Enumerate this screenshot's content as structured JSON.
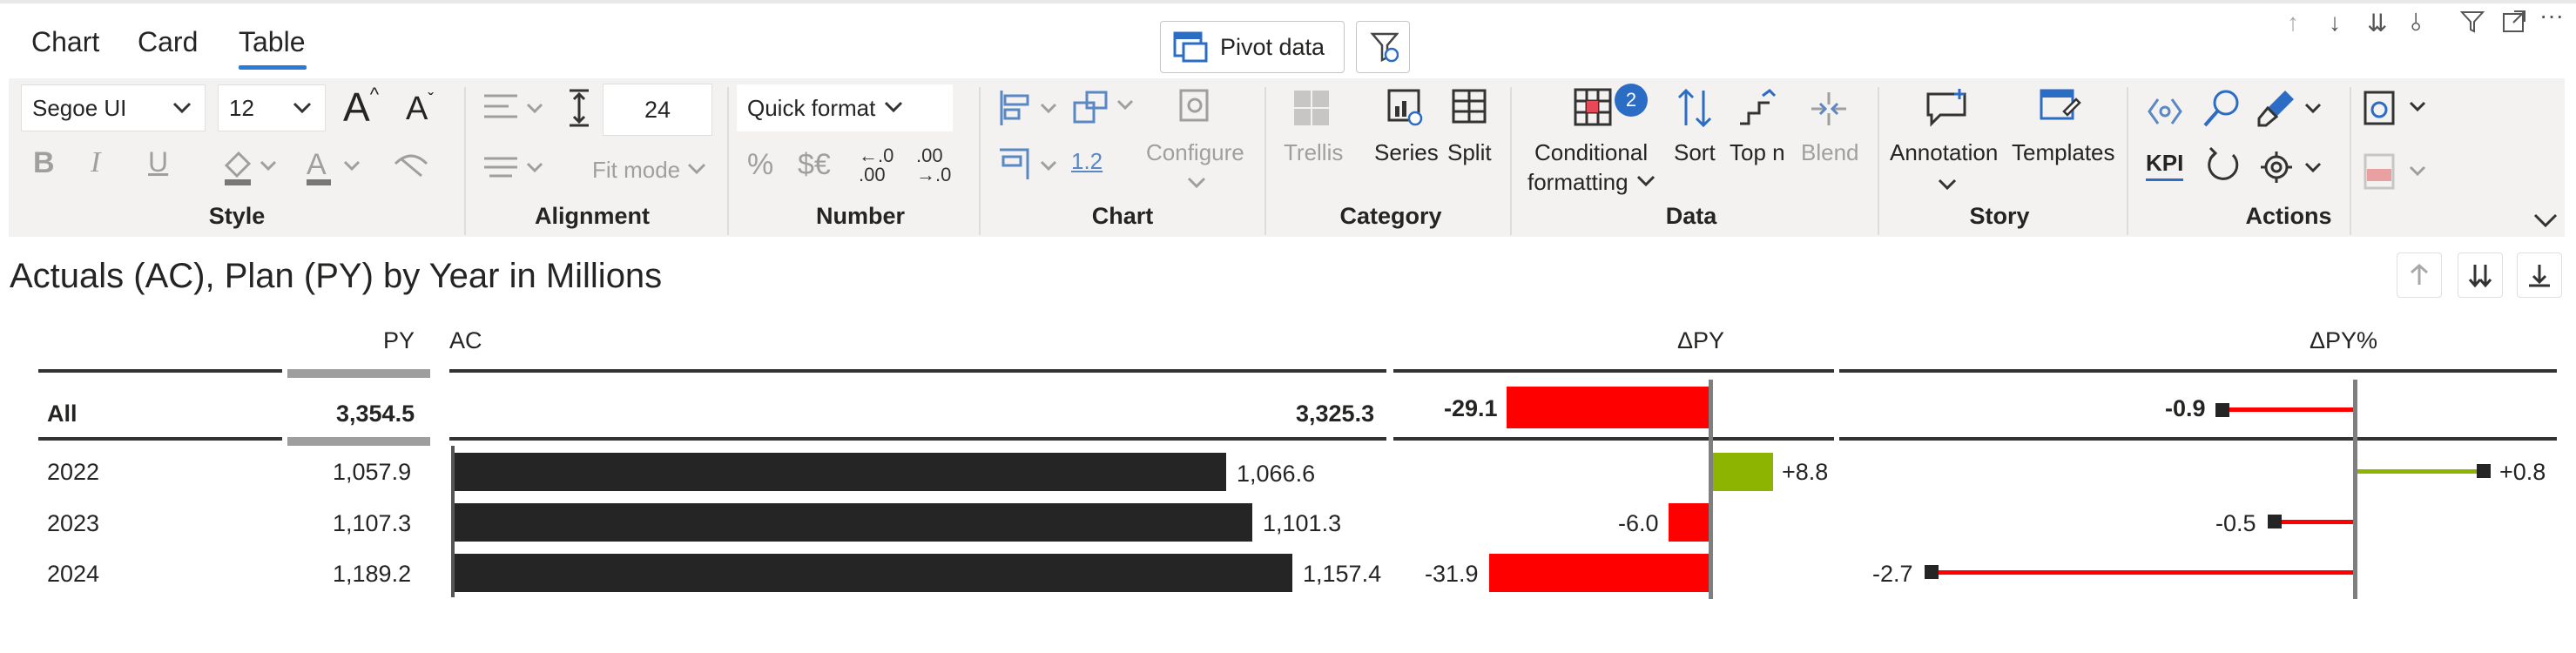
{
  "tabs": [
    {
      "label": "Chart",
      "active": false
    },
    {
      "label": "Card",
      "active": false
    },
    {
      "label": "Table",
      "active": true
    }
  ],
  "pivot_button": {
    "label": "Pivot data"
  },
  "style_group": {
    "label": "Style",
    "font_family": "Segoe UI",
    "font_size": "12"
  },
  "alignment_group": {
    "label": "Alignment",
    "row_height": "24",
    "fit_mode": "Fit mode"
  },
  "number_group": {
    "label": "Number",
    "quick_format": "Quick format"
  },
  "chart_group": {
    "label": "Chart",
    "decimal_label": "1.2",
    "configure": "Configure"
  },
  "category_group": {
    "label": "Category",
    "trellis": "Trellis",
    "series": "Series",
    "split": "Split"
  },
  "data_group": {
    "label": "Data",
    "conditional_line1": "Conditional",
    "conditional_line2": "formatting",
    "conditional_badge": "2",
    "sort": "Sort",
    "top_n": "Top n",
    "blend": "Blend"
  },
  "story_group": {
    "label": "Story",
    "annotation": "Annotation",
    "templates": "Templates"
  },
  "actions_group": {
    "label": "Actions",
    "kpi": "KPI"
  },
  "visual": {
    "title": "Actuals (AC), Plan (PY) by Year in Millions",
    "columns": {
      "py": "PY",
      "ac": "AC",
      "delta_py": "ΔPY",
      "delta_py_pct": "ΔPY%"
    },
    "total": {
      "label": "All",
      "py": "3,354.5",
      "ac": "3,325.3",
      "delta_py": "-29.1",
      "delta_py_pct": "-0.9"
    },
    "rows": [
      {
        "label": "2022",
        "py": "1,057.9",
        "ac": "1,066.6",
        "delta_py": "+8.8",
        "delta_py_pct": "+0.8"
      },
      {
        "label": "2023",
        "py": "1,107.3",
        "ac": "1,101.3",
        "delta_py": "-6.0",
        "delta_py_pct": "-0.5"
      },
      {
        "label": "2024",
        "py": "1,189.2",
        "ac": "1,157.4",
        "delta_py": "-31.9",
        "delta_py_pct": "-2.7"
      }
    ]
  },
  "colors": {
    "negative": "#ff0000",
    "positive": "#8cb400",
    "actual_bar": "#252525",
    "accent": "#2b7bd6"
  },
  "chart_data": {
    "type": "table",
    "title": "Actuals (AC), Plan (PY) by Year in Millions",
    "categories": [
      "All",
      "2022",
      "2023",
      "2024"
    ],
    "series": [
      {
        "name": "PY",
        "values": [
          3354.5,
          1057.9,
          1107.3,
          1189.2
        ]
      },
      {
        "name": "AC",
        "values": [
          3325.3,
          1066.6,
          1101.3,
          1157.4
        ]
      },
      {
        "name": "ΔPY",
        "values": [
          -29.1,
          8.8,
          -6.0,
          -31.9
        ]
      },
      {
        "name": "ΔPY%",
        "values": [
          -0.9,
          0.8,
          -0.5,
          -2.7
        ]
      }
    ]
  }
}
